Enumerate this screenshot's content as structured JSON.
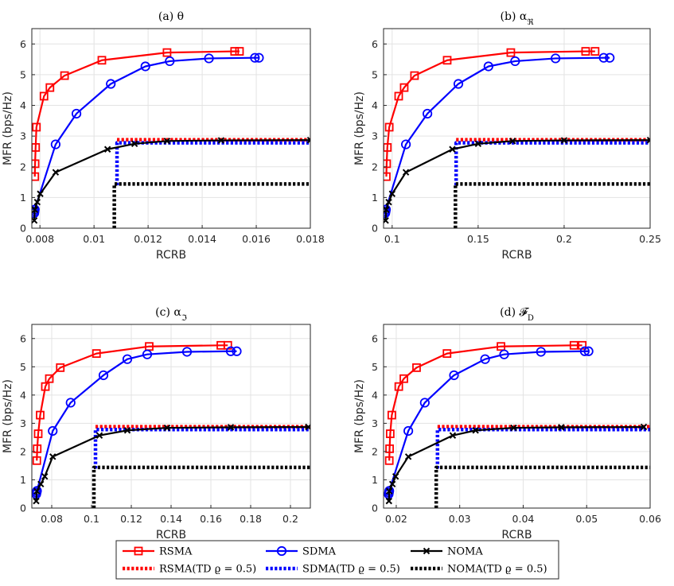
{
  "chart_data": [
    {
      "type": "line",
      "title": "(a) θ",
      "xlabel": "RCRB",
      "ylabel": "MFR (bps/Hz)",
      "xlim": [
        0.0077,
        0.018
      ],
      "ylim": [
        0,
        6.5
      ],
      "xticks": [
        0.008,
        0.01,
        0.012,
        0.014,
        0.016,
        0.018
      ],
      "xtick_labels": [
        "0.008",
        "0.01",
        "0.012",
        "0.014",
        "0.016",
        "0.018"
      ],
      "yticks": [
        0,
        1,
        2,
        3,
        4,
        5,
        6
      ],
      "ytick_labels": [
        "0",
        "1",
        "2",
        "3",
        "4",
        "5",
        "6"
      ],
      "series": [
        {
          "name": "RSMA",
          "style": "rsma",
          "x": [
            0.00781,
            0.00782,
            0.00784,
            0.00787,
            0.00815,
            0.00837,
            0.00891,
            0.01029,
            0.0127,
            0.0152,
            0.01538
          ],
          "y": [
            1.68,
            2.1,
            2.63,
            3.29,
            4.3,
            4.58,
            4.97,
            5.47,
            5.72,
            5.76,
            5.76
          ]
        },
        {
          "name": "SDMA",
          "style": "sdma",
          "x": [
            0.00779,
            0.0078,
            0.00781,
            0.00858,
            0.00935,
            0.01062,
            0.0119,
            0.0128,
            0.01425,
            0.01595,
            0.0161
          ],
          "y": [
            0.49,
            0.55,
            0.61,
            2.73,
            3.73,
            4.7,
            5.27,
            5.44,
            5.53,
            5.55,
            5.55
          ]
        },
        {
          "name": "NOMA",
          "style": "noma",
          "x": [
            0.00779,
            0.00781,
            0.0079,
            0.00801,
            0.00858,
            0.0105,
            0.0115,
            0.0127,
            0.0147,
            0.018
          ],
          "y": [
            0.25,
            0.6,
            0.85,
            1.12,
            1.82,
            2.57,
            2.75,
            2.84,
            2.86,
            2.87
          ]
        },
        {
          "name": "RSMA(TD ϱ = 0.5)",
          "style": "rsma-td",
          "x": [
            0.01085,
            0.018
          ],
          "y": [
            2.88,
            2.88
          ]
        },
        {
          "name": "SDMA(TD ϱ = 0.5)",
          "style": "sdma-td",
          "x": [
            0.01085,
            0.01085,
            0.018
          ],
          "y": [
            1.4,
            2.78,
            2.78
          ]
        },
        {
          "name": "NOMA(TD ϱ = 0.5)",
          "style": "noma-td",
          "x": [
            0.01075,
            0.01075,
            0.018
          ],
          "y": [
            0,
            1.44,
            1.44
          ]
        }
      ]
    },
    {
      "type": "line",
      "title": "(b) α",
      "title_sub": "ℜ",
      "xlabel": "RCRB",
      "ylabel": "MFR (bps/Hz)",
      "xlim": [
        0.095,
        0.25
      ],
      "ylim": [
        0,
        6.5
      ],
      "xticks": [
        0.1,
        0.15,
        0.2,
        0.25
      ],
      "xtick_labels": [
        "0.1",
        "0.15",
        "0.2",
        "0.25"
      ],
      "yticks": [
        0,
        1,
        2,
        3,
        4,
        5,
        6
      ],
      "ytick_labels": [
        "0",
        "1",
        "2",
        "3",
        "4",
        "5",
        "6"
      ],
      "series": [
        {
          "name": "RSMA",
          "style": "rsma",
          "x": [
            0.0966,
            0.0968,
            0.0972,
            0.0983,
            0.1038,
            0.107,
            0.113,
            0.132,
            0.169,
            0.2125,
            0.218
          ],
          "y": [
            1.68,
            2.1,
            2.63,
            3.29,
            4.3,
            4.58,
            4.97,
            5.47,
            5.72,
            5.76,
            5.76
          ]
        },
        {
          "name": "SDMA",
          "style": "sdma",
          "x": [
            0.096,
            0.0962,
            0.0964,
            0.108,
            0.1205,
            0.1385,
            0.156,
            0.1715,
            0.195,
            0.223,
            0.2265
          ],
          "y": [
            0.49,
            0.55,
            0.61,
            2.73,
            3.73,
            4.7,
            5.27,
            5.44,
            5.53,
            5.55,
            5.55
          ]
        },
        {
          "name": "NOMA",
          "style": "noma",
          "x": [
            0.0962,
            0.0965,
            0.098,
            0.1,
            0.108,
            0.135,
            0.15,
            0.17,
            0.2,
            0.25
          ],
          "y": [
            0.25,
            0.6,
            0.85,
            1.12,
            1.82,
            2.57,
            2.75,
            2.84,
            2.86,
            2.87
          ]
        },
        {
          "name": "RSMA(TD ϱ = 0.5)",
          "style": "rsma-td",
          "x": [
            0.1372,
            0.25
          ],
          "y": [
            2.88,
            2.88
          ]
        },
        {
          "name": "SDMA(TD ϱ = 0.5)",
          "style": "sdma-td",
          "x": [
            0.1372,
            0.1372,
            0.25
          ],
          "y": [
            1.4,
            2.78,
            2.78
          ]
        },
        {
          "name": "NOMA(TD ϱ = 0.5)",
          "style": "noma-td",
          "x": [
            0.1368,
            0.1368,
            0.25
          ],
          "y": [
            0,
            1.44,
            1.44
          ]
        }
      ]
    },
    {
      "type": "line",
      "title": "(c) α",
      "title_sub": "ℑ",
      "xlabel": "RCRB",
      "ylabel": "MFR (bps/Hz)",
      "xlim": [
        0.07,
        0.21
      ],
      "ylim": [
        0,
        6.5
      ],
      "xticks": [
        0.08,
        0.1,
        0.12,
        0.14,
        0.16,
        0.18,
        0.2
      ],
      "xtick_labels": [
        "0.08",
        "0.1",
        "0.12",
        "0.14",
        "0.16",
        "0.18",
        "0.2"
      ],
      "yticks": [
        0,
        1,
        2,
        3,
        4,
        5,
        6
      ],
      "ytick_labels": [
        "0",
        "1",
        "2",
        "3",
        "4",
        "5",
        "6"
      ],
      "series": [
        {
          "name": "RSMA",
          "style": "rsma",
          "x": [
            0.0725,
            0.0727,
            0.0732,
            0.0742,
            0.0768,
            0.0788,
            0.0843,
            0.1025,
            0.129,
            0.165,
            0.1685
          ],
          "y": [
            1.68,
            2.1,
            2.63,
            3.29,
            4.3,
            4.58,
            4.97,
            5.47,
            5.72,
            5.76,
            5.76
          ]
        },
        {
          "name": "SDMA",
          "style": "sdma",
          "x": [
            0.0722,
            0.0724,
            0.0726,
            0.0805,
            0.0895,
            0.106,
            0.118,
            0.128,
            0.148,
            0.17,
            0.173
          ],
          "y": [
            0.49,
            0.55,
            0.61,
            2.73,
            3.73,
            4.7,
            5.27,
            5.44,
            5.53,
            5.55,
            5.55
          ]
        },
        {
          "name": "NOMA",
          "style": "noma",
          "x": [
            0.0722,
            0.0725,
            0.0745,
            0.0765,
            0.0805,
            0.104,
            0.118,
            0.138,
            0.17,
            0.209
          ],
          "y": [
            0.25,
            0.6,
            0.85,
            1.12,
            1.82,
            2.57,
            2.75,
            2.84,
            2.86,
            2.87
          ]
        },
        {
          "name": "RSMA(TD ϱ = 0.5)",
          "style": "rsma-td",
          "x": [
            0.102,
            0.21
          ],
          "y": [
            2.88,
            2.88
          ]
        },
        {
          "name": "SDMA(TD ϱ = 0.5)",
          "style": "sdma-td",
          "x": [
            0.102,
            0.102,
            0.21
          ],
          "y": [
            1.4,
            2.78,
            2.78
          ]
        },
        {
          "name": "NOMA(TD ϱ = 0.5)",
          "style": "noma-td",
          "x": [
            0.1012,
            0.1012,
            0.21
          ],
          "y": [
            0,
            1.44,
            1.44
          ]
        }
      ]
    },
    {
      "type": "line",
      "title": "(d) 𝓕",
      "title_sub": "D",
      "xlabel": "RCRB",
      "ylabel": "MFR (bps/Hz)",
      "xlim": [
        0.018,
        0.06
      ],
      "ylim": [
        0,
        6.5
      ],
      "xticks": [
        0.02,
        0.03,
        0.04,
        0.05,
        0.06
      ],
      "xtick_labels": [
        "0.02",
        "0.03",
        "0.04",
        "0.05",
        "0.06"
      ],
      "yticks": [
        0,
        1,
        2,
        3,
        4,
        5,
        6
      ],
      "ytick_labels": [
        "0",
        "1",
        "2",
        "3",
        "4",
        "5",
        "6"
      ],
      "series": [
        {
          "name": "RSMA",
          "style": "rsma",
          "x": [
            0.0189,
            0.01895,
            0.01905,
            0.0193,
            0.0204,
            0.0212,
            0.0232,
            0.028,
            0.0365,
            0.048,
            0.0493
          ],
          "y": [
            1.68,
            2.1,
            2.63,
            3.29,
            4.3,
            4.58,
            4.97,
            5.47,
            5.72,
            5.76,
            5.76
          ]
        },
        {
          "name": "SDMA",
          "style": "sdma",
          "x": [
            0.0188,
            0.01885,
            0.0189,
            0.0219,
            0.0245,
            0.0291,
            0.034,
            0.037,
            0.0428,
            0.0497,
            0.0503
          ],
          "y": [
            0.49,
            0.55,
            0.61,
            2.73,
            3.73,
            4.7,
            5.27,
            5.44,
            5.53,
            5.55,
            5.55
          ]
        },
        {
          "name": "NOMA",
          "style": "noma",
          "x": [
            0.01885,
            0.0189,
            0.0194,
            0.0199,
            0.0219,
            0.0289,
            0.0325,
            0.0385,
            0.046,
            0.059
          ],
          "y": [
            0.25,
            0.6,
            0.85,
            1.12,
            1.82,
            2.57,
            2.75,
            2.84,
            2.86,
            2.87
          ]
        },
        {
          "name": "RSMA(TD ϱ = 0.5)",
          "style": "rsma-td",
          "x": [
            0.0265,
            0.06
          ],
          "y": [
            2.88,
            2.88
          ]
        },
        {
          "name": "SDMA(TD ϱ = 0.5)",
          "style": "sdma-td",
          "x": [
            0.0265,
            0.0265,
            0.06
          ],
          "y": [
            1.4,
            2.78,
            2.78
          ]
        },
        {
          "name": "NOMA(TD ϱ = 0.5)",
          "style": "noma-td",
          "x": [
            0.0263,
            0.0263,
            0.06
          ],
          "y": [
            0,
            1.44,
            1.44
          ]
        }
      ]
    }
  ],
  "legend": {
    "placement": "bottom-center",
    "entries": [
      {
        "label": "RSMA",
        "style": "rsma"
      },
      {
        "label": "SDMA",
        "style": "sdma"
      },
      {
        "label": "NOMA",
        "style": "noma"
      },
      {
        "label": "RSMA(TD ϱ = 0.5)",
        "style": "rsma-td"
      },
      {
        "label": "SDMA(TD ϱ = 0.5)",
        "style": "sdma-td"
      },
      {
        "label": "NOMA(TD ϱ = 0.5)",
        "style": "noma-td"
      }
    ]
  },
  "colors": {
    "rsma": "#ff0000",
    "sdma": "#0000ff",
    "noma": "#000000"
  }
}
